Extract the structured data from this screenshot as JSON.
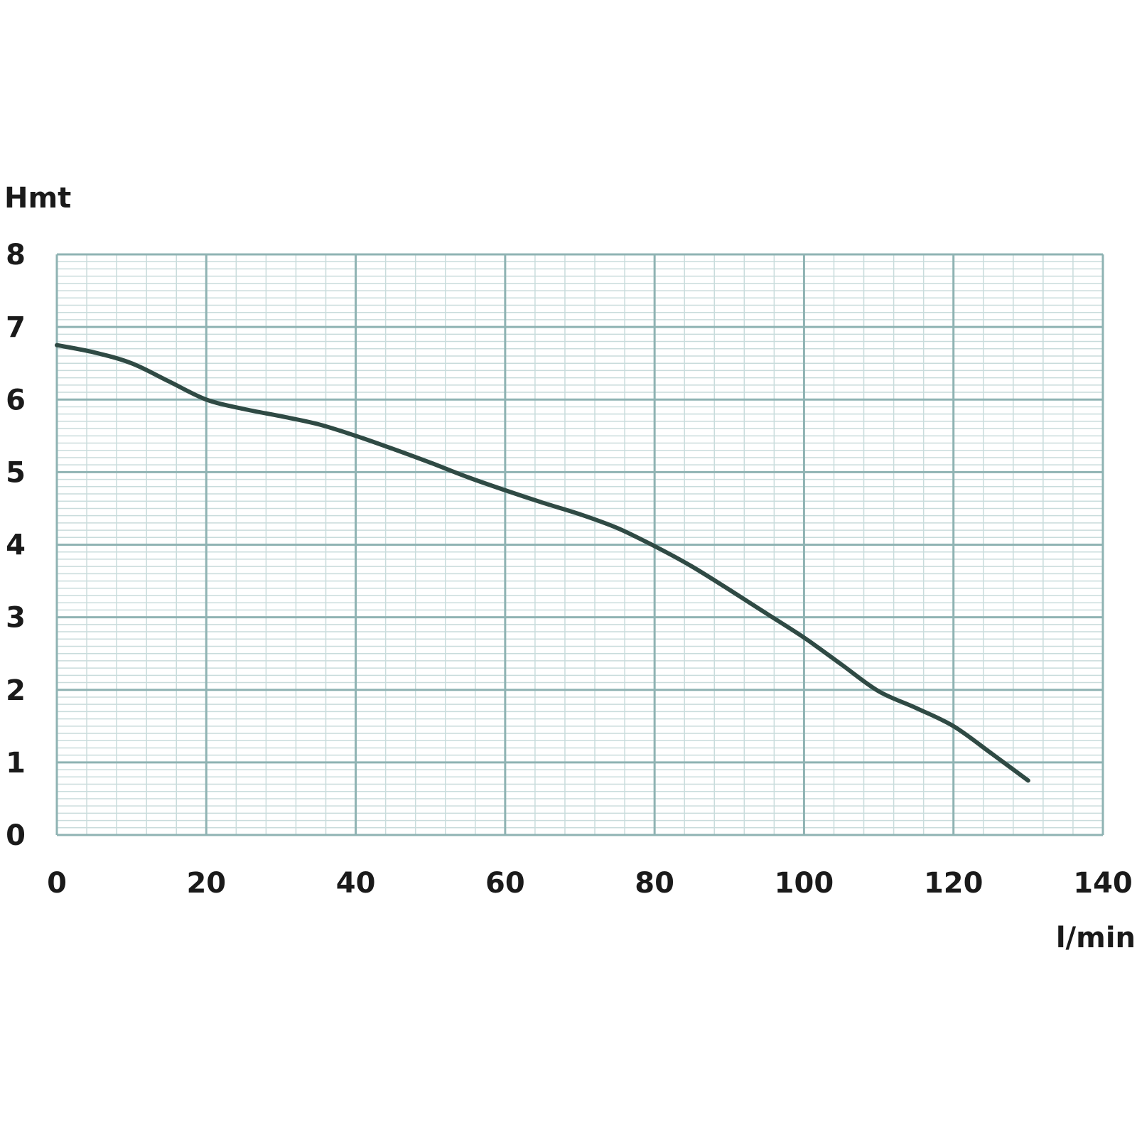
{
  "chart_data": {
    "type": "line",
    "title": "",
    "xlabel": "l/min",
    "ylabel": "Hmt",
    "xlim": [
      0,
      140
    ],
    "ylim": [
      0,
      8
    ],
    "x_major_step": 20,
    "y_major_step": 1,
    "x_minor_per_major": 5,
    "y_minor_per_major": 10,
    "grid": true,
    "x_ticks": [
      "0",
      "20",
      "40",
      "60",
      "80",
      "100",
      "120",
      "140"
    ],
    "y_ticks": [
      "0",
      "1",
      "2",
      "3",
      "4",
      "5",
      "6",
      "7",
      "8"
    ],
    "colors": {
      "curve": "#2f4a44",
      "grid_major": "#8fb3b3",
      "grid_minor": "#c9dcdc"
    },
    "series": [
      {
        "x": [
          0,
          5,
          10,
          15,
          20,
          25,
          30,
          35,
          40,
          45,
          50,
          55,
          60,
          65,
          70,
          75,
          80,
          85,
          90,
          95,
          100,
          105,
          110,
          115,
          120,
          125,
          130
        ],
        "y": [
          6.75,
          6.65,
          6.5,
          6.25,
          6.0,
          5.87,
          5.77,
          5.66,
          5.5,
          5.32,
          5.13,
          4.93,
          4.75,
          4.58,
          4.42,
          4.23,
          3.98,
          3.7,
          3.38,
          3.05,
          2.72,
          2.35,
          1.98,
          1.75,
          1.5,
          1.13,
          0.75
        ]
      }
    ]
  }
}
